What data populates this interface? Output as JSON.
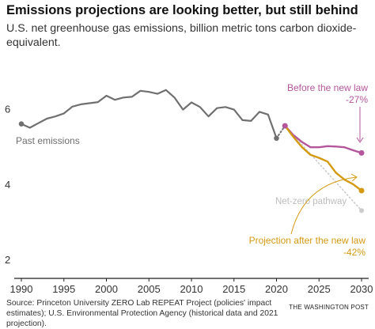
{
  "header": {
    "title": "Emissions projections are looking better, but still behind",
    "subtitle": "U.S. net greenhouse gas emissions, billion metric tons carbon dioxide-equivalent."
  },
  "footer": {
    "source": "Source: Princeton University ZERO Lab REPEAT Project (policies' impact estimates); U.S. Environmental Protection Agency (historical data and 2021 projection).",
    "credit": "THE WASHINGTON POST"
  },
  "colors": {
    "past": "#707070",
    "before_law": "#b5569c",
    "after_law": "#d49a13",
    "net_zero": "#cccccc",
    "axis": "#222222",
    "grid": "#e2e2e2"
  },
  "chart_data": {
    "type": "line",
    "title": "Emissions projections are looking better, but still behind",
    "ylabel": "",
    "xlabel": "",
    "xlim": [
      1990,
      2030
    ],
    "ylim": [
      1.5,
      7.0
    ],
    "x_ticks": [
      1990,
      1995,
      2000,
      2005,
      2010,
      2015,
      2020,
      2025,
      2030
    ],
    "y_ticks": [
      2,
      4,
      6
    ],
    "grid": false,
    "series": [
      {
        "name": "Past emissions",
        "color": "#707070",
        "x": [
          1990,
          1991,
          1992,
          1993,
          1994,
          1995,
          1996,
          1997,
          1998,
          1999,
          2000,
          2001,
          2002,
          2003,
          2004,
          2005,
          2006,
          2007,
          2008,
          2009,
          2010,
          2011,
          2012,
          2013,
          2014,
          2015,
          2016,
          2017,
          2018,
          2019,
          2020
        ],
        "values": [
          5.6,
          5.5,
          5.62,
          5.74,
          5.8,
          5.88,
          6.06,
          6.12,
          6.15,
          6.18,
          6.35,
          6.24,
          6.3,
          6.32,
          6.48,
          6.45,
          6.4,
          6.5,
          6.3,
          5.98,
          6.17,
          6.05,
          5.8,
          6.02,
          6.05,
          5.98,
          5.7,
          5.68,
          5.92,
          5.85,
          5.22
        ]
      },
      {
        "name": "Before the new law",
        "annotation": "-27%",
        "color": "#b5569c",
        "x": [
          2021,
          2022,
          2023,
          2024,
          2025,
          2026,
          2027,
          2028,
          2029,
          2030
        ],
        "values": [
          5.55,
          5.3,
          5.12,
          4.98,
          4.98,
          5.01,
          5.0,
          4.98,
          4.9,
          4.83
        ]
      },
      {
        "name": "Projection after the new law",
        "annotation": "-42%",
        "color": "#d49a13",
        "x": [
          2021,
          2022,
          2023,
          2024,
          2025,
          2026,
          2027,
          2028,
          2029,
          2030
        ],
        "values": [
          5.55,
          5.25,
          4.98,
          4.78,
          4.7,
          4.6,
          4.3,
          4.12,
          4.0,
          3.83
        ]
      },
      {
        "name": "Net-zero pathway",
        "color": "#cccccc",
        "style": "dotted",
        "x": [
          2021,
          2030
        ],
        "values": [
          5.55,
          3.3
        ]
      }
    ]
  }
}
